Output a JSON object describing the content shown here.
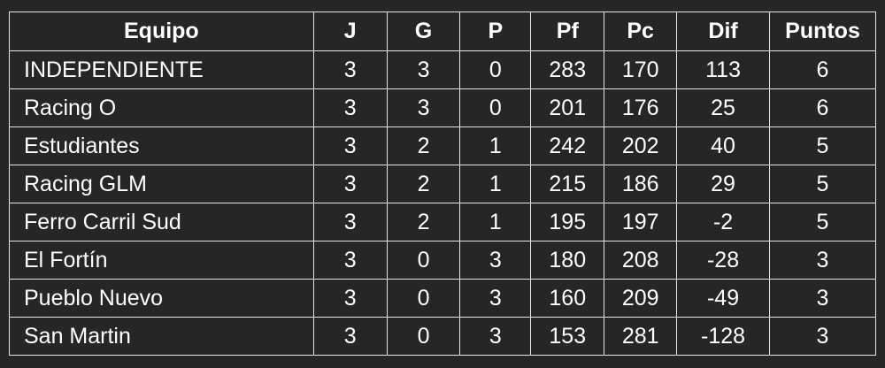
{
  "headers": [
    "Equipo",
    "J",
    "G",
    "P",
    "Pf",
    "Pc",
    "Dif",
    "Puntos"
  ],
  "rows": [
    [
      "INDEPENDIENTE",
      "3",
      "3",
      "0",
      "283",
      "170",
      "113",
      "6"
    ],
    [
      "Racing O",
      "3",
      "3",
      "0",
      "201",
      "176",
      "25",
      "6"
    ],
    [
      "Estudiantes",
      "3",
      "2",
      "1",
      "242",
      "202",
      "40",
      "5"
    ],
    [
      "Racing GLM",
      "3",
      "2",
      "1",
      "215",
      "186",
      "29",
      "5"
    ],
    [
      "Ferro Carril Sud",
      "3",
      "2",
      "1",
      "195",
      "197",
      "-2",
      "5"
    ],
    [
      "El Fortín",
      "3",
      "0",
      "3",
      "180",
      "208",
      "-28",
      "3"
    ],
    [
      "Pueblo Nuevo",
      "3",
      "0",
      "3",
      "160",
      "209",
      "-49",
      "3"
    ],
    [
      "San Martin",
      "3",
      "0",
      "3",
      "153",
      "281",
      "-128",
      "3"
    ]
  ]
}
